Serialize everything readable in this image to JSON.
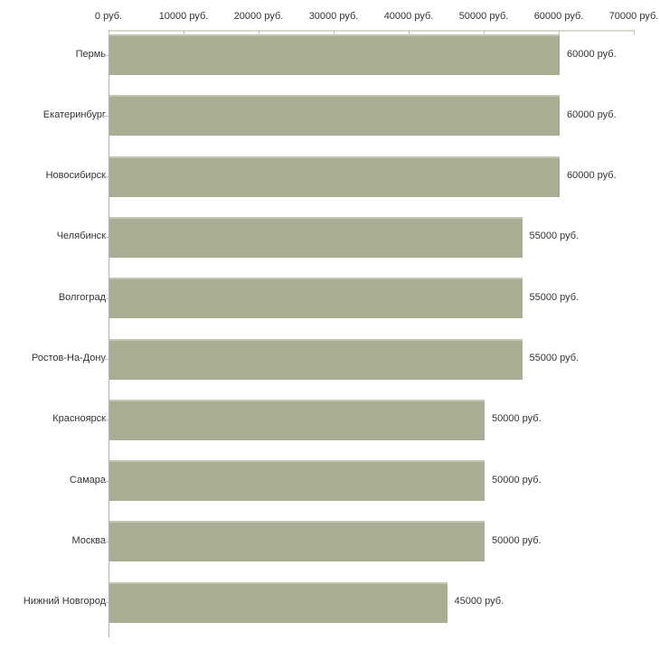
{
  "chart_data": {
    "type": "bar",
    "orientation": "horizontal",
    "title": "",
    "xlabel": "",
    "ylabel": "",
    "unit": "руб.",
    "categories": [
      "Пермь",
      "Екатеринбург",
      "Новосибирск",
      "Челябинск",
      "Волгоград",
      "Ростов-На-Дону",
      "Красноярск",
      "Самара",
      "Москва",
      "Нижний Новгород"
    ],
    "values": [
      60000,
      60000,
      60000,
      55000,
      55000,
      55000,
      50000,
      50000,
      50000,
      45000
    ],
    "value_labels": [
      "60000 руб.",
      "60000 руб.",
      "60000 руб.",
      "55000 руб.",
      "55000 руб.",
      "55000 руб.",
      "50000 руб.",
      "50000 руб.",
      "50000 руб.",
      "45000 руб."
    ],
    "x_ticks": [
      0,
      10000,
      20000,
      30000,
      40000,
      50000,
      60000,
      70000
    ],
    "x_tick_labels": [
      "0 руб.",
      "10000 руб.",
      "20000 руб.",
      "30000 руб.",
      "40000 руб.",
      "50000 руб.",
      "60000 руб.",
      "70000 руб."
    ],
    "xlim": [
      0,
      70000
    ],
    "grid": false,
    "legend": null,
    "axis_position": "top",
    "colors": {
      "background": "#ffffff",
      "bar": "#a8ae94",
      "bar_top_edge": "#c2c7b1",
      "axis_line": "#dadac8",
      "tick": "#c8c8aa",
      "y_axis": "#b3b3b3",
      "text": "#333333"
    }
  }
}
